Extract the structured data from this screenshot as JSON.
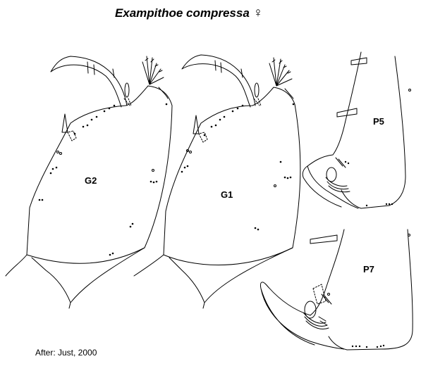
{
  "title": {
    "species": "Exampithoe compressa",
    "sex_symbol": "♀"
  },
  "labels": {
    "g2": "G2",
    "g1": "G1",
    "p5": "P5",
    "p7": "P7"
  },
  "credit": "After: Just, 2000",
  "colors": {
    "ink": "#000000",
    "background": "#ffffff"
  }
}
